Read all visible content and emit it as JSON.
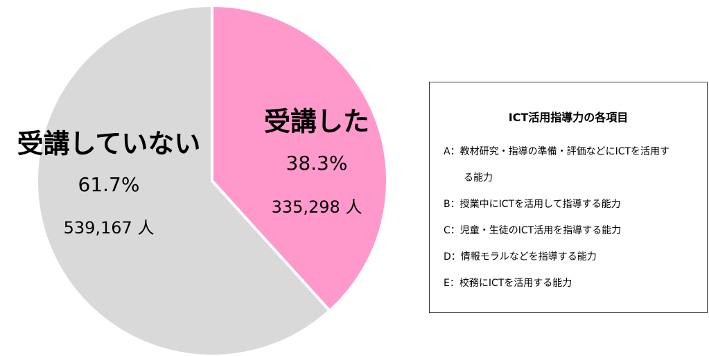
{
  "chart_data": {
    "type": "pie",
    "categories": [
      "受講した",
      "受講していない"
    ],
    "values": [
      38.3,
      61.7
    ],
    "value_labels": [
      "38.3%",
      "61.7%"
    ],
    "count_labels": [
      "335,298 人",
      "539,167 人"
    ],
    "colors": [
      "#ff99cc",
      "#d9d9d9"
    ]
  },
  "item_box": {
    "title": "ICT活用指導力の各項目",
    "items": [
      "A：教材研究・指導の準備・評価などにICTを活用する能力",
      "B：授業中にICTを活用して指導する能力",
      "C：児童・生徒のICT活用を指導する能力",
      "D：情報モラルなどを指導する能力",
      "E：校務にICTを活用する能力"
    ]
  }
}
